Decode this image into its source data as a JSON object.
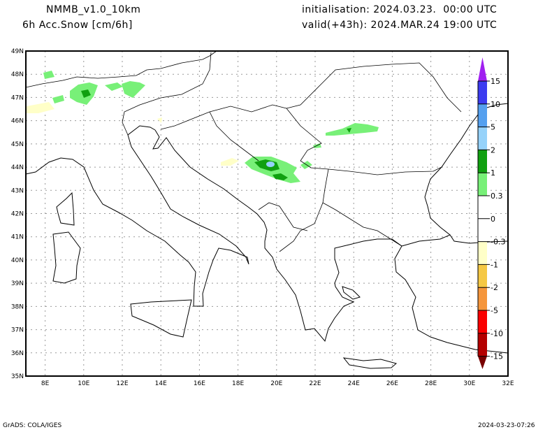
{
  "header": {
    "model": "NMMB_v1.0_10km",
    "field": "6h Acc.Snow [cm/6h]",
    "init": "initialisation: 2024.03.23.  00:00 UTC",
    "valid": "valid(+43h): 2024.MAR.24 19:00 UTC"
  },
  "axes": {
    "lat_labels": [
      "35N",
      "36N",
      "37N",
      "38N",
      "39N",
      "40N",
      "41N",
      "42N",
      "43N",
      "44N",
      "45N",
      "46N",
      "47N",
      "48N",
      "49N"
    ],
    "lon_labels": [
      "8E",
      "10E",
      "12E",
      "14E",
      "16E",
      "18E",
      "20E",
      "22E",
      "24E",
      "26E",
      "28E",
      "30E",
      "32E"
    ]
  },
  "colorbar": {
    "labels": [
      "15",
      "10",
      "5",
      "2",
      "1",
      "0.3",
      "0",
      "-0.3",
      "-1",
      "-2",
      "-5",
      "-10",
      "-15"
    ],
    "colors": {
      "top_tip": "#a020f0",
      "15_10": "#3c3cf0",
      "10_5": "#55a0ef",
      "5_2": "#96d2fa",
      "2_1": "#10a010",
      "1_0.3": "#78f078",
      "0": "#ffffff",
      "-0.3_-1": "#ffffc8",
      "-1_-2": "#f5c845",
      "-2_-5": "#f5963c",
      "-5_-10": "#fa0000",
      "-10_-15": "#b40000",
      "bottom_tip": "#780000"
    }
  },
  "footer": {
    "left": "GrADS: COLA/IGES",
    "right": "2024-03-23-07:26"
  }
}
